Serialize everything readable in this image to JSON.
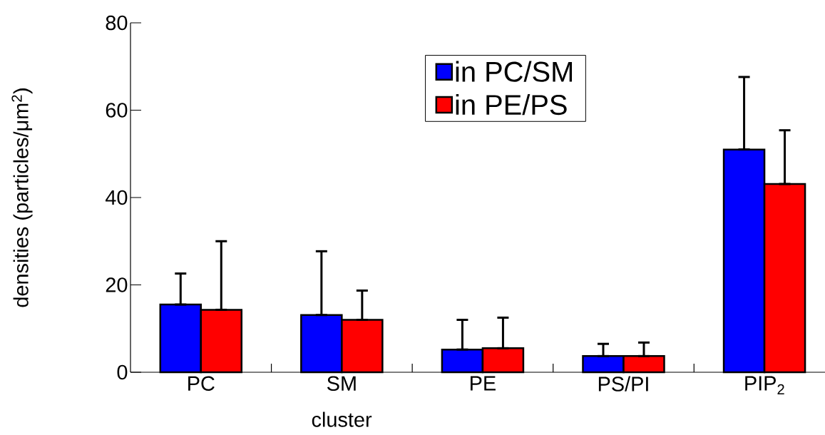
{
  "chart_data": {
    "type": "bar",
    "xlabel": "cluster",
    "ylabel": "densities (particles/μm$^{2}$)",
    "categories": [
      "PC",
      "SM",
      "PE",
      "PS/PI",
      "PIP$_{2}$"
    ],
    "series": [
      {
        "name": "in PC/SM",
        "color": "#0000ff",
        "values": [
          15.5,
          13.1,
          5.2,
          3.7,
          51.0
        ],
        "errors": [
          [
            15.5,
            22.6
          ],
          [
            13.1,
            27.7
          ],
          [
            5.2,
            12.0
          ],
          [
            3.7,
            6.5
          ],
          [
            51.0,
            67.6
          ]
        ]
      },
      {
        "name": "in PE/PS",
        "color": "#ff0000",
        "values": [
          14.3,
          12.0,
          5.5,
          3.7,
          43.1
        ],
        "errors": [
          [
            14.3,
            30.0
          ],
          [
            12.0,
            18.7
          ],
          [
            5.5,
            12.5
          ],
          [
            3.7,
            6.8
          ],
          [
            43.1,
            55.4
          ]
        ]
      }
    ],
    "ylim": [
      0,
      80
    ],
    "yticks": [
      0,
      20,
      40,
      60,
      80
    ],
    "legend": "top"
  }
}
